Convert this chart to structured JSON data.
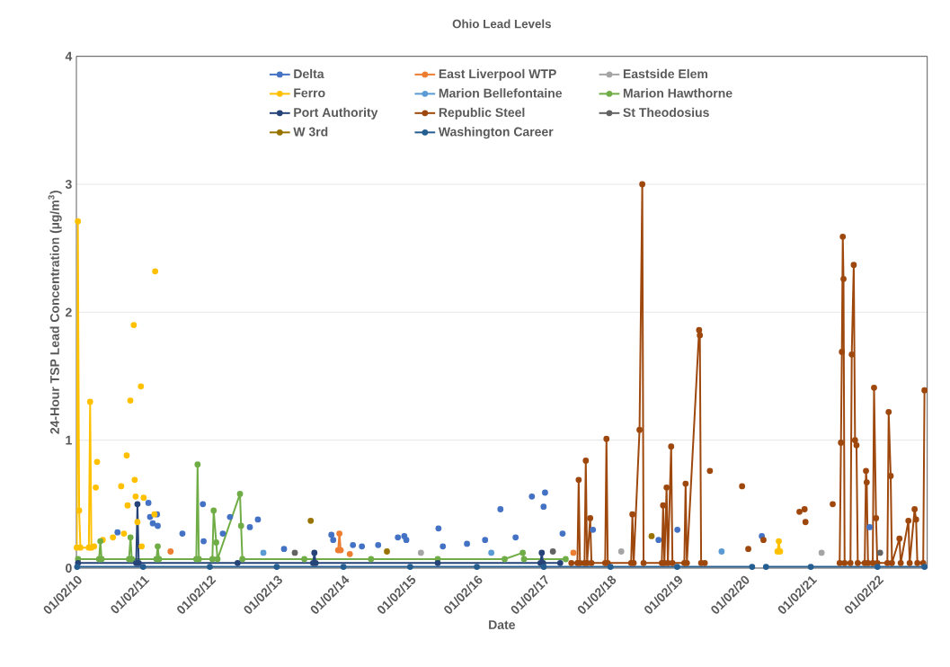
{
  "chart_data": {
    "type": "line",
    "title": "Ohio Lead Levels",
    "xlabel": "Date",
    "ylabel": "24-Hour TSP Lead Concentration (µg/m$^{3}$)",
    "xlim": [
      "2010-01-01",
      "2022-09-30"
    ],
    "ylim": [
      0,
      4
    ],
    "yticks": [
      0,
      1,
      2,
      3,
      4
    ],
    "xticks": [
      {
        "value": "2010-01-02",
        "label": "01/02/10"
      },
      {
        "value": "2011-01-02",
        "label": "01/02/11"
      },
      {
        "value": "2012-01-02",
        "label": "01/02/12"
      },
      {
        "value": "2013-01-02",
        "label": "01/02/13"
      },
      {
        "value": "2014-01-02",
        "label": "01/02/14"
      },
      {
        "value": "2015-01-02",
        "label": "01/02/15"
      },
      {
        "value": "2016-01-02",
        "label": "01/02/16"
      },
      {
        "value": "2017-01-02",
        "label": "01/02/17"
      },
      {
        "value": "2018-01-02",
        "label": "01/02/18"
      },
      {
        "value": "2019-01-02",
        "label": "01/02/19"
      },
      {
        "value": "2020-01-02",
        "label": "01/02/20"
      },
      {
        "value": "2021-01-02",
        "label": "01/02/21"
      },
      {
        "value": "2022-01-02",
        "label": "01/02/22"
      }
    ],
    "grid": "y",
    "legend": "top",
    "marker": "circle",
    "line_style": "solid",
    "series": [
      {
        "name": "Delta",
        "color": "#4472c4",
        "x": [
          "2010-08-14",
          "2010-08-16",
          "2011-01-30",
          "2011-02-01",
          "2011-02-08",
          "2011-02-10",
          "2011-02-23",
          "2011-02-25",
          "2011-03-18",
          "2011-03-20",
          "2011-03-22",
          "2011-03-24",
          "2011-08-04",
          "2011-08-06",
          "2011-11-24",
          "2011-11-26",
          "2011-11-28",
          "2011-11-30",
          "2012-03-12",
          "2012-03-14",
          "2012-04-20",
          "2012-04-22",
          "2012-08-07",
          "2012-08-09",
          "2012-09-20",
          "2012-09-22",
          "2013-02-10",
          "2013-02-12",
          "2013-10-27",
          "2013-10-29",
          "2013-11-06",
          "2013-11-08",
          "2014-02-22",
          "2014-02-24",
          "2014-04-12",
          "2014-04-14",
          "2014-07-10",
          "2014-07-12",
          "2014-10-26",
          "2014-10-28",
          "2014-11-30",
          "2014-12-02",
          "2014-12-11",
          "2014-12-13",
          "2015-06-05",
          "2015-06-07",
          "2015-06-29",
          "2015-07-01",
          "2015-11-08",
          "2015-11-10",
          "2016-02-15",
          "2016-02-17",
          "2016-05-09",
          "2016-05-11",
          "2016-07-31",
          "2016-08-02",
          "2016-10-28",
          "2016-10-30",
          "2016-12-31",
          "2017-01-02",
          "2017-01-08",
          "2017-01-10",
          "2017-04-14",
          "2017-04-16",
          "2017-09-27",
          "2017-09-29",
          "2018-09-21",
          "2018-09-23",
          "2019-01-02",
          "2019-01-04",
          "2020-04-08",
          "2020-04-10",
          "2021-11-19"
        ],
        "values": [
          0.28,
          null,
          0.51,
          null,
          0.4,
          null,
          0.35,
          null,
          0.42,
          null,
          0.33,
          null,
          0.27,
          null,
          0.5,
          null,
          0.21,
          null,
          0.27,
          null,
          0.4,
          null,
          0.32,
          null,
          0.38,
          null,
          0.15,
          null,
          0.26,
          null,
          0.22,
          null,
          0.18,
          null,
          0.17,
          null,
          0.18,
          null,
          0.24,
          null,
          0.25,
          null,
          0.22,
          null,
          0.31,
          null,
          0.17,
          null,
          0.19,
          null,
          0.22,
          null,
          0.46,
          null,
          0.24,
          null,
          0.56,
          null,
          0.48,
          null,
          0.59,
          null,
          0.27,
          null,
          0.3,
          null,
          0.22,
          null,
          0.3,
          null,
          0.25,
          null,
          0.32
        ]
      },
      {
        "name": "East Liverpool WTP",
        "color": "#ed7d31",
        "x": [
          "2011-05-31",
          "2011-06-02",
          "2013-12-03",
          "2013-12-10",
          "2013-12-17",
          "2013-12-19",
          "2014-02-05",
          "2014-02-07",
          "2017-06-12"
        ],
        "values": [
          0.13,
          null,
          0.14,
          0.27,
          0.14,
          null,
          0.11,
          null,
          0.12
        ]
      },
      {
        "name": "Eastside Elem",
        "color": "#a5a5a5",
        "x": [
          "2015-03-01",
          "2015-03-03",
          "2018-03-01",
          "2018-03-03",
          "2021-03-01"
        ],
        "values": [
          0.12,
          null,
          0.13,
          null,
          0.12
        ]
      },
      {
        "name": "Ferro",
        "color": "#ffc000",
        "x": [
          "2010-01-03",
          "2010-01-09",
          "2010-01-16",
          "2010-01-23",
          "2010-03-10",
          "2010-03-17",
          "2010-03-24",
          "2010-03-26",
          "2010-04-08",
          "2010-04-10",
          "2010-04-17",
          "2010-04-19",
          "2010-04-24",
          "2010-04-26",
          "2010-05-25",
          "2010-05-27",
          "2010-07-20",
          "2010-07-22",
          "2010-09-03",
          "2010-09-05",
          "2010-09-18",
          "2010-09-20",
          "2010-10-03",
          "2010-10-05",
          "2010-10-08",
          "2010-10-10",
          "2010-10-23",
          "2010-10-25",
          "2010-11-11",
          "2010-11-13",
          "2010-11-16",
          "2010-11-18",
          "2010-11-21",
          "2010-11-23",
          "2010-12-01",
          "2010-12-03",
          "2010-12-20",
          "2010-12-22",
          "2010-12-24",
          "2010-12-26",
          "2011-01-04",
          "2011-01-06",
          "2011-03-04",
          "2011-03-06",
          "2011-03-08",
          "2011-03-10",
          "2020-07-03",
          "2020-07-10",
          "2020-07-17"
        ],
        "values": [
          0.16,
          2.71,
          0.45,
          0.16,
          0.16,
          1.3,
          0.16,
          null,
          0.17,
          null,
          0.63,
          null,
          0.83,
          null,
          0.22,
          null,
          0.24,
          null,
          0.64,
          null,
          0.27,
          null,
          0.88,
          null,
          0.49,
          null,
          1.31,
          null,
          1.9,
          null,
          0.69,
          null,
          0.56,
          null,
          0.36,
          null,
          1.42,
          null,
          0.17,
          null,
          0.55,
          null,
          0.42,
          null,
          2.32,
          null,
          0.13,
          0.21,
          0.13
        ]
      },
      {
        "name": "Marion Bellefontaine",
        "color": "#5b9bd5",
        "x": [
          "2012-10-20",
          "2012-10-22",
          "2016-03-20",
          "2016-03-22",
          "2019-09-01"
        ],
        "values": [
          0.12,
          null,
          0.12,
          null,
          0.13
        ]
      },
      {
        "name": "Marion Hawthorne",
        "color": "#70ad47",
        "x": [
          "2010-01-10",
          "2010-05-05",
          "2010-05-12",
          "2010-05-19",
          "2010-10-16",
          "2010-10-24",
          "2010-10-31",
          "2011-03-15",
          "2011-03-22",
          "2011-03-29",
          "2011-10-19",
          "2011-10-26",
          "2011-11-02",
          "2012-01-15",
          "2012-01-22",
          "2012-02-05",
          "2012-02-12",
          "2012-06-14",
          "2012-06-20",
          "2012-06-27",
          "2013-06-01",
          "2014-06-01",
          "2015-06-01",
          "2016-06-01",
          "2016-09-08",
          "2016-09-15",
          "2017-05-01"
        ],
        "values": [
          0.07,
          0.07,
          0.21,
          0.07,
          0.07,
          0.24,
          0.07,
          0.07,
          0.17,
          0.07,
          0.07,
          0.81,
          0.07,
          0.07,
          0.45,
          0.2,
          0.07,
          0.58,
          0.33,
          0.07,
          0.07,
          0.07,
          0.07,
          0.07,
          0.12,
          0.07,
          0.07
        ]
      },
      {
        "name": "Port Authority",
        "color": "#264478",
        "x": [
          "2010-01-10",
          "2010-11-24",
          "2010-12-01",
          "2010-12-08",
          "2012-06-01",
          "2013-07-19",
          "2013-07-26",
          "2013-08-02",
          "2015-06-01",
          "2016-12-14",
          "2016-12-21",
          "2016-12-28",
          "2017-04-01"
        ],
        "values": [
          0.04,
          0.04,
          0.5,
          0.04,
          0.04,
          0.04,
          0.12,
          0.04,
          0.04,
          0.04,
          0.12,
          0.04,
          0.04
        ]
      },
      {
        "name": "Republic Steel",
        "color": "#9e480e",
        "x": [
          "2017-06-01",
          "2017-07-04",
          "2017-07-11",
          "2017-07-18",
          "2017-08-12",
          "2017-08-19",
          "2017-08-26",
          "2017-09-12",
          "2017-09-19",
          "2017-12-03",
          "2017-12-10",
          "2017-12-17",
          "2018-04-24",
          "2018-05-01",
          "2018-05-08",
          "2018-06-09",
          "2018-06-24",
          "2018-07-01",
          "2018-10-09",
          "2018-10-16",
          "2018-10-23",
          "2018-11-04",
          "2018-11-11",
          "2018-11-29",
          "2018-12-06",
          "2019-02-09",
          "2019-02-16",
          "2019-02-23",
          "2019-05-01",
          "2019-05-05",
          "2019-05-12",
          "2019-06-01",
          "2019-06-03",
          "2019-06-29",
          "2019-07-01",
          "2019-12-22",
          "2019-12-24",
          "2020-01-25",
          "2020-01-27",
          "2020-04-17",
          "2020-04-19",
          "2020-10-31",
          "2020-11-02",
          "2020-11-28",
          "2020-11-30",
          "2020-12-03",
          "2020-12-05",
          "2021-05-01",
          "2021-05-03",
          "2021-06-08",
          "2021-06-15",
          "2021-06-20",
          "2021-06-25",
          "2021-06-29",
          "2021-07-05",
          "2021-08-06",
          "2021-08-13",
          "2021-08-24",
          "2021-08-31",
          "2021-09-08",
          "2021-09-15",
          "2021-10-23",
          "2021-10-30",
          "2021-11-03",
          "2021-11-10",
          "2021-12-06",
          "2021-12-13",
          "2021-12-24",
          "2021-12-31",
          "2022-02-24",
          "2022-03-03",
          "2022-03-14",
          "2022-03-21",
          "2022-05-01",
          "2022-05-08",
          "2022-06-19",
          "2022-06-26",
          "2022-07-23",
          "2022-07-31",
          "2022-08-07",
          "2022-09-08",
          "2022-09-15"
        ],
        "values": [
          0.04,
          0.04,
          0.69,
          0.04,
          0.04,
          0.84,
          0.04,
          0.39,
          0.04,
          0.04,
          1.01,
          0.04,
          0.04,
          0.42,
          0.04,
          1.08,
          3.0,
          0.04,
          0.04,
          0.49,
          0.04,
          0.63,
          0.04,
          0.95,
          0.04,
          0.04,
          0.66,
          0.04,
          1.86,
          1.82,
          0.04,
          0.04,
          null,
          0.76,
          null,
          0.64,
          null,
          0.15,
          null,
          0.22,
          null,
          0.44,
          null,
          0.46,
          null,
          0.36,
          null,
          0.5,
          null,
          0.04,
          0.98,
          1.69,
          2.59,
          2.26,
          0.04,
          0.04,
          1.67,
          2.37,
          1.0,
          0.96,
          0.04,
          0.04,
          0.76,
          0.67,
          0.04,
          0.04,
          1.41,
          0.39,
          0.04,
          0.04,
          1.22,
          0.72,
          0.04,
          0.23,
          0.04,
          0.37,
          0.04,
          0.46,
          0.38,
          0.04,
          0.04,
          1.39
        ]
      },
      {
        "name": "St Theodosius",
        "color": "#636363",
        "x": [
          "2013-04-10",
          "2013-04-12",
          "2017-02-20",
          "2017-02-22",
          "2022-01-15"
        ],
        "values": [
          0.12,
          null,
          0.13,
          null,
          0.12
        ]
      },
      {
        "name": "W 3rd",
        "color": "#997300",
        "x": [
          "2013-07-06",
          "2013-07-08",
          "2014-08-27",
          "2014-08-29",
          "2018-08-14"
        ],
        "values": [
          0.37,
          null,
          0.13,
          null,
          0.25
        ]
      },
      {
        "name": "Washington Career",
        "color": "#255e91",
        "x": [
          "2010-01-05",
          "2011-01-01",
          "2012-01-01",
          "2013-01-01",
          "2014-01-01",
          "2015-01-01",
          "2016-01-01",
          "2017-01-01",
          "2018-01-01",
          "2019-01-01",
          "2020-02-15",
          "2020-03-01",
          "2020-05-01",
          "2021-01-01",
          "2022-01-01",
          "2022-09-15"
        ],
        "values": [
          0.01,
          0.01,
          0.01,
          0.01,
          0.01,
          0.01,
          0.01,
          0.01,
          0.01,
          0.01,
          0.01,
          null,
          0.01,
          0.01,
          0.01,
          0.01
        ]
      }
    ]
  }
}
